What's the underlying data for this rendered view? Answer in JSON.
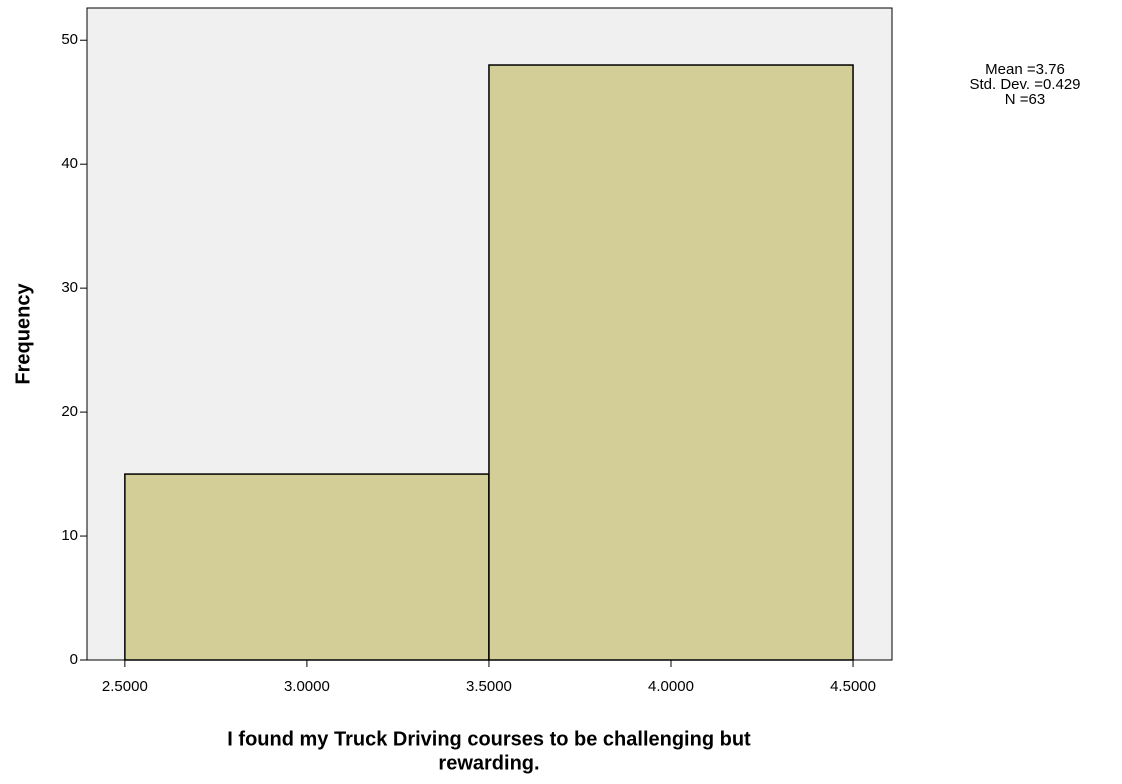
{
  "chart_data": {
    "type": "histogram",
    "xlabel": [
      "I found my Truck Driving courses to be challenging but",
      "rewarding."
    ],
    "ylabel": "Frequency",
    "bins": [
      2.5,
      3.5,
      4.5
    ],
    "counts": [
      15,
      48
    ],
    "color": "#d3ce97",
    "background": "#f0f0f0",
    "xlim": [
      2.396,
      4.607
    ],
    "xticks": [
      {
        "value": 2.5,
        "label": "2.5000"
      },
      {
        "value": 3.0,
        "label": "3.0000"
      },
      {
        "value": 3.5,
        "label": "3.5000"
      },
      {
        "value": 4.0,
        "label": "4.0000"
      },
      {
        "value": 4.5,
        "label": "4.5000"
      }
    ],
    "ylim": [
      0,
      52.6
    ],
    "yticks": [
      0,
      10,
      20,
      30,
      40,
      50
    ],
    "annotations": [
      "Mean =3.76",
      "Std. Dev. =0.429",
      "N =63"
    ]
  }
}
